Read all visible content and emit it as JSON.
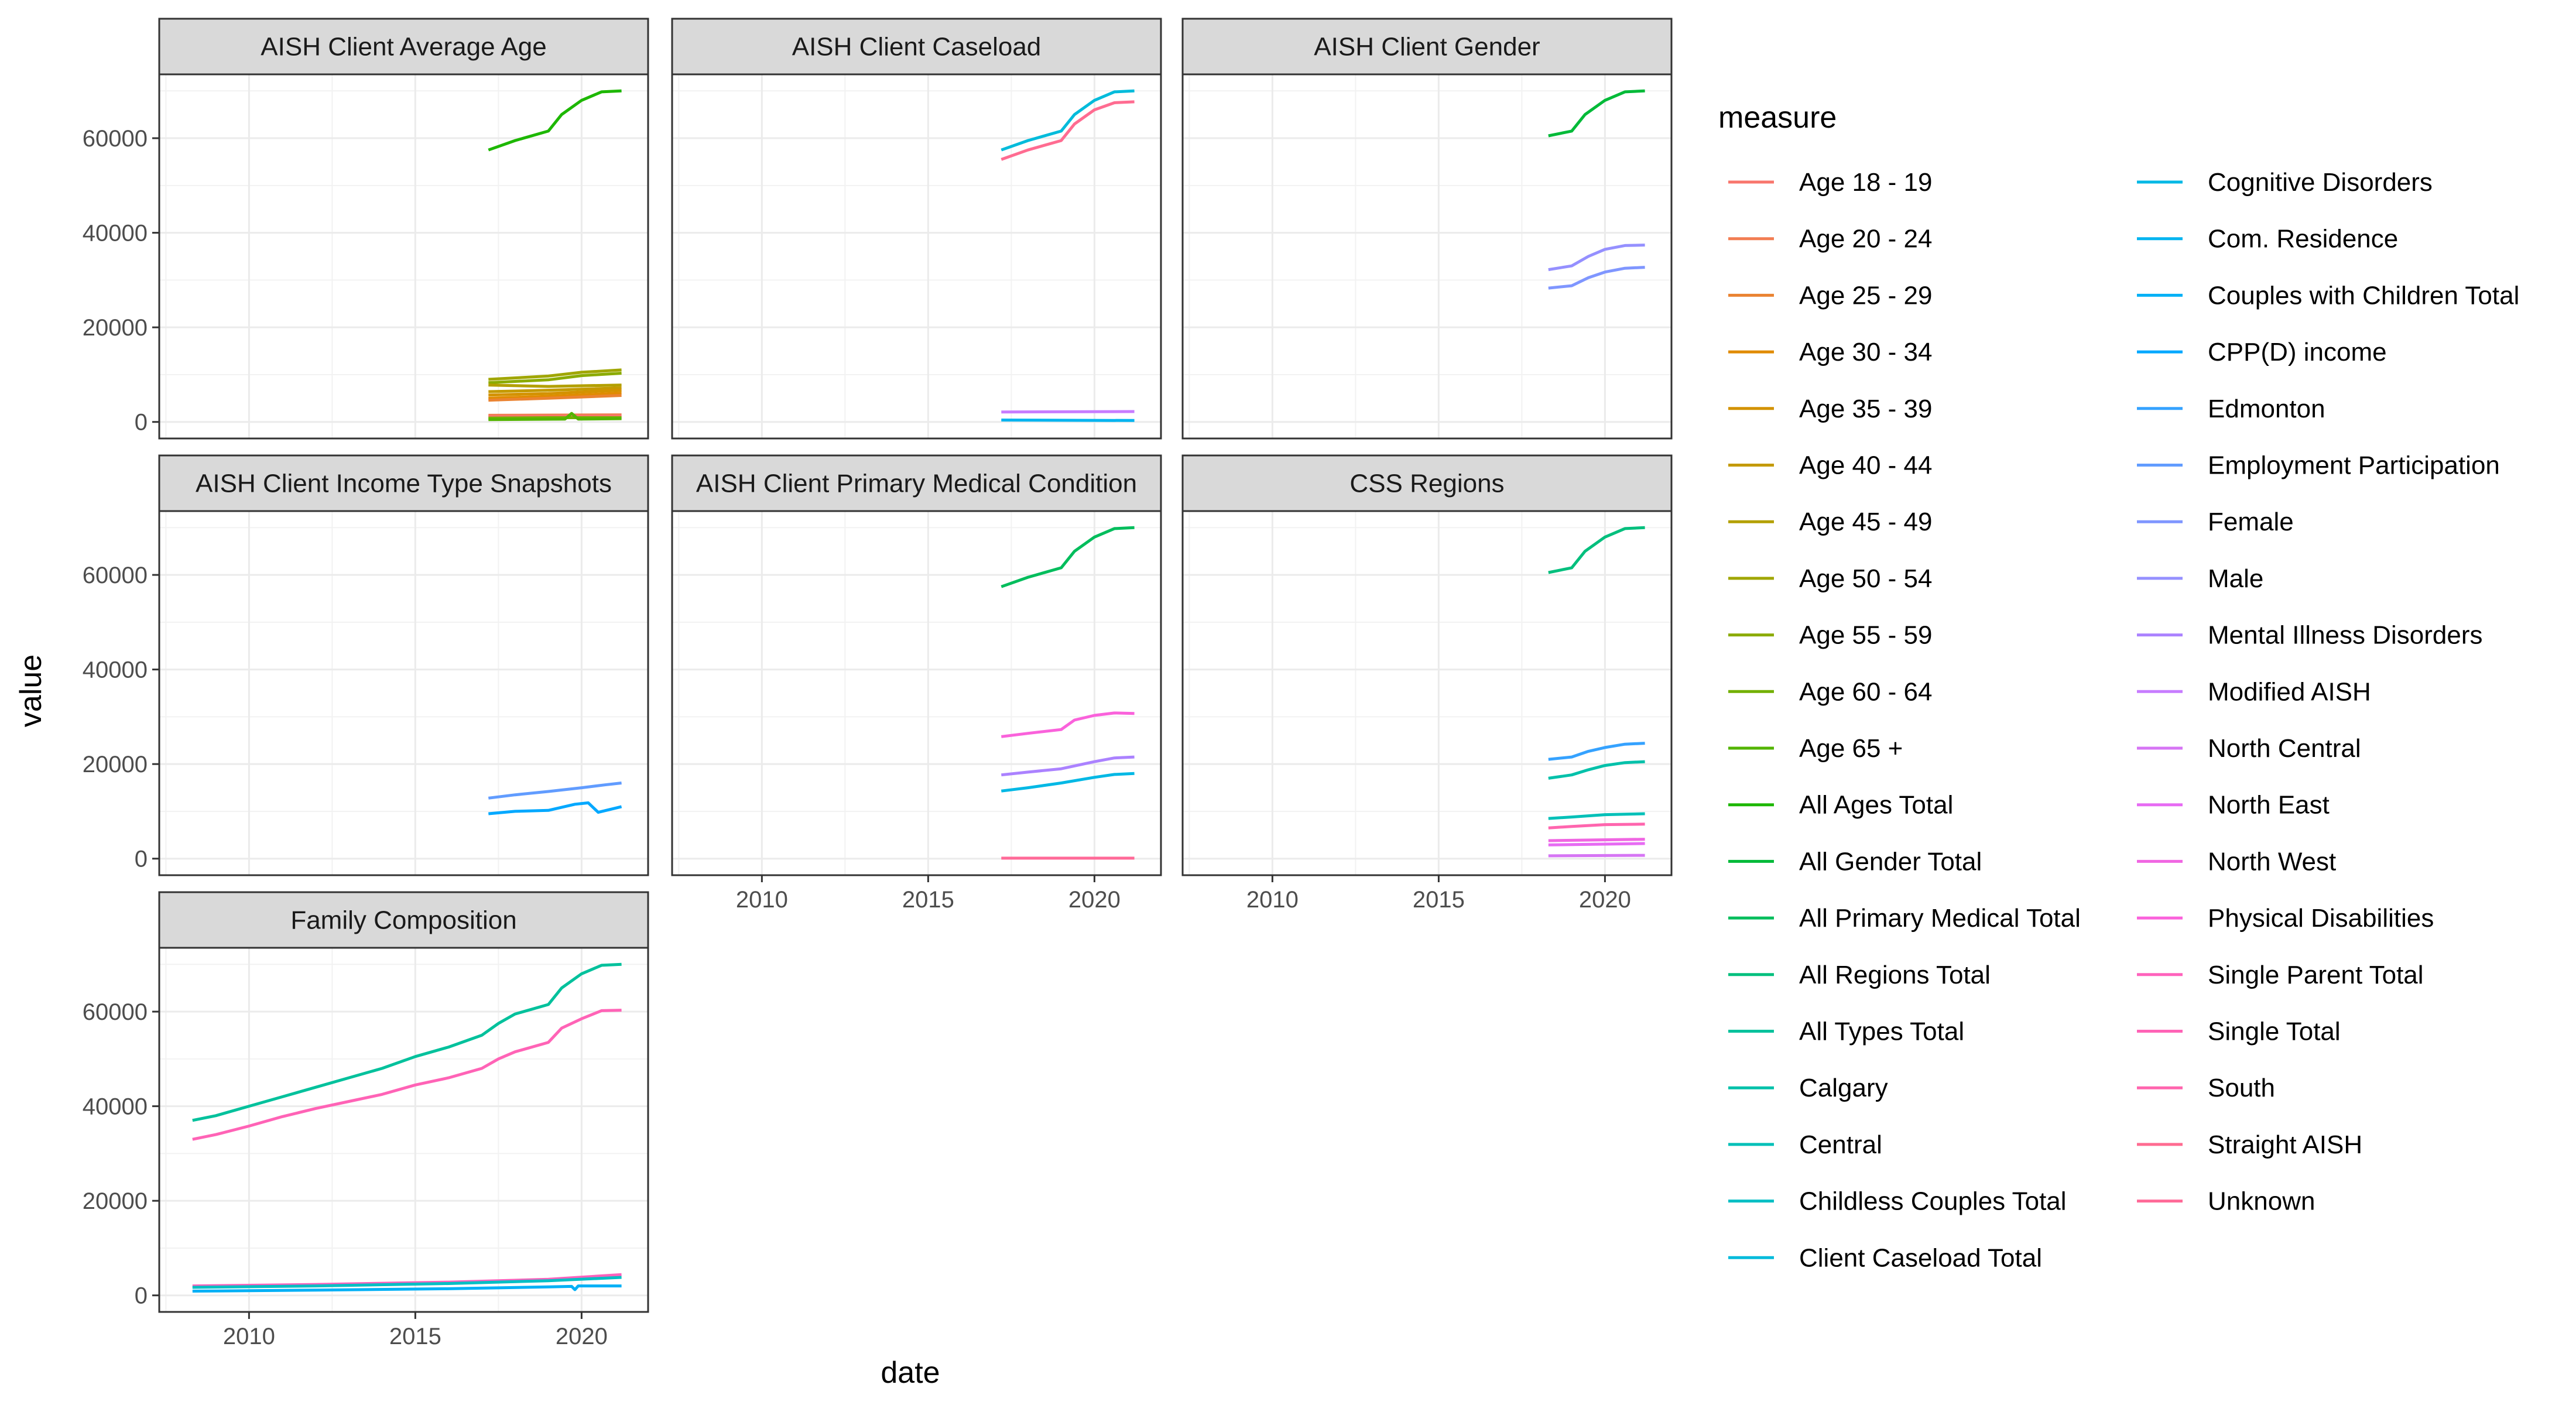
{
  "chart_data": {
    "type": "line",
    "xlabel": "date",
    "ylabel": "value",
    "xlim": [
      2007.3,
      2022.0
    ],
    "ylim": [
      -3500,
      73500
    ],
    "xticks": [
      2010,
      2015,
      2020
    ],
    "yticks": [
      0,
      20000,
      40000,
      60000
    ],
    "legend_title": "measure",
    "legend_position": "right",
    "grid": true,
    "measures": [
      {
        "name": "Age 18 - 19",
        "color": "#F8766D"
      },
      {
        "name": "Age 20 - 24",
        "color": "#F27D52"
      },
      {
        "name": "Age 25 - 29",
        "color": "#EA8331"
      },
      {
        "name": "Age 30 - 34",
        "color": "#E08B00"
      },
      {
        "name": "Age 35 - 39",
        "color": "#D39200"
      },
      {
        "name": "Age 40 - 44",
        "color": "#C49A00"
      },
      {
        "name": "Age 45 - 49",
        "color": "#B3A000"
      },
      {
        "name": "Age 50 - 54",
        "color": "#A0A600"
      },
      {
        "name": "Age 55 - 59",
        "color": "#8BAB00"
      },
      {
        "name": "Age 60 - 64",
        "color": "#72B000"
      },
      {
        "name": "Age 65 +",
        "color": "#53B400"
      },
      {
        "name": "All Ages Total",
        "color": "#1DB700"
      },
      {
        "name": "All Gender Total",
        "color": "#00BA38"
      },
      {
        "name": "All Primary Medical Total",
        "color": "#00BD5C"
      },
      {
        "name": "All Regions Total",
        "color": "#00BF7D"
      },
      {
        "name": "All Types Total",
        "color": "#00C19C"
      },
      {
        "name": "Calgary",
        "color": "#00C1AA"
      },
      {
        "name": "Central",
        "color": "#00C0B8"
      },
      {
        "name": "Childless Couples Total",
        "color": "#00BFC4"
      },
      {
        "name": "Client Caseload Total",
        "color": "#00BBDB"
      },
      {
        "name": "Cognitive Disorders",
        "color": "#00B8E5"
      },
      {
        "name": "Com. Residence",
        "color": "#00B4F0"
      },
      {
        "name": "Couples with Children Total",
        "color": "#00B0F6"
      },
      {
        "name": "CPP(D) income",
        "color": "#00A8FF"
      },
      {
        "name": "Edmonton",
        "color": "#35A2FF"
      },
      {
        "name": "Employment Participation",
        "color": "#619CFF"
      },
      {
        "name": "Female",
        "color": "#7F96FF"
      },
      {
        "name": "Male",
        "color": "#9590FF"
      },
      {
        "name": "Mental Illness Disorders",
        "color": "#AB82FF"
      },
      {
        "name": "Modified AISH",
        "color": "#C77CFF"
      },
      {
        "name": "North Central",
        "color": "#D675F4"
      },
      {
        "name": "North East",
        "color": "#E76BF3"
      },
      {
        "name": "North West",
        "color": "#F066E2"
      },
      {
        "name": "Physical Disabilities",
        "color": "#FA62DB"
      },
      {
        "name": "Single Parent Total",
        "color": "#FF62BC"
      },
      {
        "name": "Single Total",
        "color": "#FF63B6"
      },
      {
        "name": "South",
        "color": "#FF65AE"
      },
      {
        "name": "Straight AISH",
        "color": "#FF6C91"
      },
      {
        "name": "Unknown",
        "color": "#FF6A98"
      }
    ],
    "panels": [
      {
        "title": "AISH Client Average Age",
        "series": [
          {
            "name": "All Ages Total",
            "color": "#1DB700",
            "x": [
              2017.2,
              2018.0,
              2019.0,
              2019.4,
              2020.0,
              2020.6,
              2021.2
            ],
            "y": [
              57500,
              59500,
              61500,
              65000,
              68000,
              69800,
              70000
            ]
          },
          {
            "name": "Age 50 - 54",
            "color": "#A0A600",
            "x": [
              2017.2,
              2019.0,
              2020.0,
              2021.2
            ],
            "y": [
              9000,
              9700,
              10500,
              11000
            ]
          },
          {
            "name": "Age 55 - 59",
            "color": "#8BAB00",
            "x": [
              2017.2,
              2019.0,
              2020.0,
              2021.2
            ],
            "y": [
              8300,
              8900,
              9800,
              10300
            ]
          },
          {
            "name": "Age 45 - 49",
            "color": "#B3A000",
            "x": [
              2017.2,
              2019.0,
              2021.2
            ],
            "y": [
              7800,
              7500,
              7800
            ]
          },
          {
            "name": "Age 40 - 44",
            "color": "#C49A00",
            "x": [
              2017.2,
              2019.0,
              2021.2
            ],
            "y": [
              6400,
              6700,
              7200
            ]
          },
          {
            "name": "Age 35 - 39",
            "color": "#D39200",
            "x": [
              2017.2,
              2019.0,
              2021.2
            ],
            "y": [
              5700,
              6000,
              6700
            ]
          },
          {
            "name": "Age 30 - 34",
            "color": "#E08B00",
            "x": [
              2017.2,
              2019.0,
              2021.2
            ],
            "y": [
              5000,
              5400,
              6100
            ]
          },
          {
            "name": "Age 25 - 29",
            "color": "#EA8331",
            "x": [
              2017.2,
              2019.0,
              2021.2
            ],
            "y": [
              4600,
              5000,
              5600
            ]
          },
          {
            "name": "Age 20 - 24",
            "color": "#F27D52",
            "x": [
              2017.2,
              2021.2
            ],
            "y": [
              1400,
              1500
            ]
          },
          {
            "name": "Age 18 - 19",
            "color": "#F8766D",
            "x": [
              2017.2,
              2021.2
            ],
            "y": [
              1100,
              1200
            ]
          },
          {
            "name": "Age 60 - 64",
            "color": "#72B000",
            "x": [
              2017.2,
              2019.0,
              2021.2
            ],
            "y": [
              800,
              900,
              900
            ]
          },
          {
            "name": "Age 65 +",
            "color": "#53B400",
            "x": [
              2017.2,
              2019.5,
              2019.7,
              2019.9,
              2021.2
            ],
            "y": [
              500,
              600,
              1800,
              600,
              700
            ]
          }
        ]
      },
      {
        "title": "AISH Client Caseload",
        "series": [
          {
            "name": "Client Caseload Total",
            "color": "#00BBDB",
            "x": [
              2017.2,
              2018.0,
              2019.0,
              2019.4,
              2020.0,
              2020.6,
              2021.2
            ],
            "y": [
              57500,
              59500,
              61500,
              65000,
              68000,
              69800,
              70000
            ]
          },
          {
            "name": "Straight AISH",
            "color": "#FF6C91",
            "x": [
              2017.2,
              2018.0,
              2019.0,
              2019.4,
              2020.0,
              2020.6,
              2021.2
            ],
            "y": [
              55500,
              57500,
              59500,
              63000,
              66000,
              67500,
              67700
            ]
          },
          {
            "name": "Modified AISH",
            "color": "#C77CFF",
            "x": [
              2017.2,
              2021.2
            ],
            "y": [
              2100,
              2200
            ]
          },
          {
            "name": "Com. Residence",
            "color": "#00B4F0",
            "x": [
              2017.2,
              2021.2
            ],
            "y": [
              400,
              300
            ]
          }
        ]
      },
      {
        "title": "AISH Client Gender",
        "series": [
          {
            "name": "All Gender Total",
            "color": "#00BA38",
            "x": [
              2018.3,
              2019.0,
              2019.4,
              2020.0,
              2020.6,
              2021.2
            ],
            "y": [
              60500,
              61500,
              65000,
              68000,
              69800,
              70000
            ]
          },
          {
            "name": "Male",
            "color": "#9590FF",
            "x": [
              2018.3,
              2019.0,
              2019.5,
              2020.0,
              2020.6,
              2021.2
            ],
            "y": [
              32200,
              33000,
              35000,
              36500,
              37300,
              37400
            ]
          },
          {
            "name": "Female",
            "color": "#7F96FF",
            "x": [
              2018.3,
              2019.0,
              2019.5,
              2020.0,
              2020.6,
              2021.2
            ],
            "y": [
              28300,
              28800,
              30500,
              31700,
              32500,
              32700
            ]
          }
        ]
      },
      {
        "title": "AISH Client Income Type Snapshots",
        "series": [
          {
            "name": "Employment Participation",
            "color": "#619CFF",
            "x": [
              2017.2,
              2018.0,
              2019.0,
              2020.0,
              2020.7,
              2021.2
            ],
            "y": [
              12800,
              13500,
              14200,
              15000,
              15600,
              16000
            ]
          },
          {
            "name": "CPP(D) income",
            "color": "#00A8FF",
            "x": [
              2017.2,
              2018.0,
              2019.0,
              2019.8,
              2020.2,
              2020.5,
              2021.2
            ],
            "y": [
              9500,
              10000,
              10200,
              11500,
              11800,
              9800,
              11000
            ]
          }
        ]
      },
      {
        "title": "AISH Client Primary Medical Condition",
        "series": [
          {
            "name": "All Primary Medical Total",
            "color": "#00BD5C",
            "x": [
              2017.2,
              2018.0,
              2019.0,
              2019.4,
              2020.0,
              2020.6,
              2021.2
            ],
            "y": [
              57500,
              59500,
              61500,
              65000,
              68000,
              69800,
              70000
            ]
          },
          {
            "name": "Physical Disabilities",
            "color": "#FA62DB",
            "x": [
              2017.2,
              2018.0,
              2019.0,
              2019.4,
              2020.0,
              2020.6,
              2021.2
            ],
            "y": [
              25800,
              26500,
              27300,
              29300,
              30300,
              30800,
              30700
            ]
          },
          {
            "name": "Mental Illness Disorders",
            "color": "#AB82FF",
            "x": [
              2017.2,
              2018.0,
              2019.0,
              2020.0,
              2020.6,
              2021.2
            ],
            "y": [
              17700,
              18300,
              19000,
              20500,
              21300,
              21500
            ]
          },
          {
            "name": "Cognitive Disorders",
            "color": "#00B8E5",
            "x": [
              2017.2,
              2018.0,
              2019.0,
              2020.0,
              2020.6,
              2021.2
            ],
            "y": [
              14300,
              15000,
              16000,
              17200,
              17800,
              18000
            ]
          },
          {
            "name": "Unknown",
            "color": "#FF6A98",
            "x": [
              2017.2,
              2021.2
            ],
            "y": [
              100,
              100
            ]
          }
        ]
      },
      {
        "title": "CSS Regions",
        "series": [
          {
            "name": "All Regions Total",
            "color": "#00BF7D",
            "x": [
              2018.3,
              2019.0,
              2019.4,
              2020.0,
              2020.6,
              2021.2
            ],
            "y": [
              60500,
              61500,
              65000,
              68000,
              69800,
              70000
            ]
          },
          {
            "name": "Edmonton",
            "color": "#35A2FF",
            "x": [
              2018.3,
              2019.0,
              2019.5,
              2020.0,
              2020.6,
              2021.2
            ],
            "y": [
              21000,
              21500,
              22700,
              23500,
              24200,
              24400
            ]
          },
          {
            "name": "Calgary",
            "color": "#00C1AA",
            "x": [
              2018.3,
              2019.0,
              2019.5,
              2020.0,
              2020.6,
              2021.2
            ],
            "y": [
              17000,
              17700,
              18800,
              19700,
              20300,
              20500
            ]
          },
          {
            "name": "Central",
            "color": "#00C0B8",
            "x": [
              2018.3,
              2019.0,
              2020.0,
              2021.2
            ],
            "y": [
              8500,
              8800,
              9300,
              9500
            ]
          },
          {
            "name": "South",
            "color": "#FF65AE",
            "x": [
              2018.3,
              2019.0,
              2020.0,
              2021.2
            ],
            "y": [
              6500,
              6800,
              7200,
              7300
            ]
          },
          {
            "name": "North West",
            "color": "#F066E2",
            "x": [
              2018.3,
              2021.2
            ],
            "y": [
              3800,
              4100
            ]
          },
          {
            "name": "North East",
            "color": "#E76BF3",
            "x": [
              2018.3,
              2021.2
            ],
            "y": [
              2900,
              3200
            ]
          },
          {
            "name": "North Central",
            "color": "#D675F4",
            "x": [
              2018.3,
              2021.2
            ],
            "y": [
              600,
              700
            ]
          }
        ]
      },
      {
        "title": "Family Composition",
        "series": [
          {
            "name": "All Types Total",
            "color": "#00C19C",
            "x": [
              2008.3,
              2009.0,
              2010.0,
              2011.0,
              2012.0,
              2013.0,
              2014.0,
              2015.0,
              2016.0,
              2017.0,
              2017.5,
              2018.0,
              2019.0,
              2019.4,
              2020.0,
              2020.6,
              2021.2
            ],
            "y": [
              37000,
              38000,
              40000,
              42000,
              44000,
              46000,
              48000,
              50500,
              52500,
              55000,
              57500,
              59500,
              61500,
              65000,
              68000,
              69800,
              70000
            ]
          },
          {
            "name": "Single Total",
            "color": "#FF63B6",
            "x": [
              2008.3,
              2009.0,
              2010.0,
              2011.0,
              2012.0,
              2013.0,
              2014.0,
              2015.0,
              2016.0,
              2017.0,
              2017.5,
              2018.0,
              2019.0,
              2019.4,
              2020.0,
              2020.6,
              2021.2
            ],
            "y": [
              33000,
              34000,
              35800,
              37800,
              39500,
              41000,
              42500,
              44500,
              46000,
              48000,
              50000,
              51500,
              53500,
              56500,
              58500,
              60200,
              60300
            ]
          },
          {
            "name": "Single Parent Total",
            "color": "#FF62BC",
            "x": [
              2008.3,
              2012.0,
              2016.0,
              2019.0,
              2021.2
            ],
            "y": [
              2000,
              2300,
              2800,
              3400,
              4400
            ]
          },
          {
            "name": "Childless Couples Total",
            "color": "#00BFC4",
            "x": [
              2008.3,
              2012.0,
              2016.0,
              2019.0,
              2021.2
            ],
            "y": [
              1700,
              2000,
              2500,
              3100,
              3800
            ]
          },
          {
            "name": "Couples with Children Total",
            "color": "#00B0F6",
            "x": [
              2008.3,
              2012.0,
              2016.0,
              2019.0,
              2019.7,
              2019.8,
              2019.9,
              2021.2
            ],
            "y": [
              900,
              1100,
              1400,
              1800,
              1900,
              1200,
              2000,
              2000
            ]
          }
        ]
      }
    ]
  }
}
